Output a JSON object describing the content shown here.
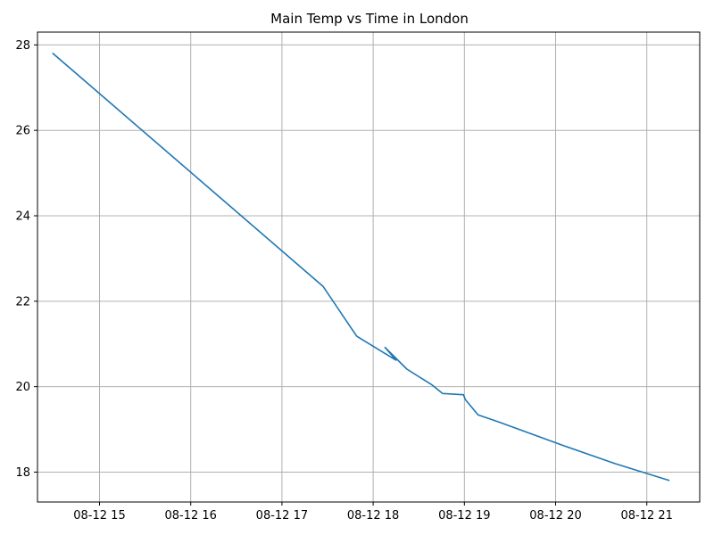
{
  "chart_data": {
    "type": "line",
    "title": "Main Temp vs Time in London",
    "xlabel": "",
    "ylabel": "",
    "x_unit": "hours",
    "xlim": [
      14.32,
      21.58
    ],
    "ylim": [
      17.3,
      28.3
    ],
    "grid": true,
    "x_ticks": [
      {
        "value": 15,
        "label": "08-12 15"
      },
      {
        "value": 16,
        "label": "08-12 16"
      },
      {
        "value": 17,
        "label": "08-12 17"
      },
      {
        "value": 18,
        "label": "08-12 18"
      },
      {
        "value": 19,
        "label": "08-12 19"
      },
      {
        "value": 20,
        "label": "08-12 20"
      },
      {
        "value": 21,
        "label": "08-12 21"
      }
    ],
    "y_ticks": [
      {
        "value": 18,
        "label": "18"
      },
      {
        "value": 20,
        "label": "20"
      },
      {
        "value": 22,
        "label": "22"
      },
      {
        "value": 24,
        "label": "24"
      },
      {
        "value": 26,
        "label": "26"
      },
      {
        "value": 28,
        "label": "28"
      }
    ],
    "series": [
      {
        "color": "#1f77b4",
        "points": [
          {
            "x": 14.49,
            "y": 27.8
          },
          {
            "x": 17.45,
            "y": 22.35
          },
          {
            "x": 17.82,
            "y": 21.18
          },
          {
            "x": 18.25,
            "y": 20.62
          },
          {
            "x": 18.13,
            "y": 20.92
          },
          {
            "x": 18.37,
            "y": 20.41
          },
          {
            "x": 18.64,
            "y": 20.05
          },
          {
            "x": 18.76,
            "y": 19.84
          },
          {
            "x": 18.99,
            "y": 19.81
          },
          {
            "x": 19.01,
            "y": 19.7
          },
          {
            "x": 19.15,
            "y": 19.34
          },
          {
            "x": 19.38,
            "y": 19.17
          },
          {
            "x": 20.1,
            "y": 18.61
          },
          {
            "x": 20.65,
            "y": 18.2
          },
          {
            "x": 21.24,
            "y": 17.81
          }
        ]
      }
    ]
  }
}
